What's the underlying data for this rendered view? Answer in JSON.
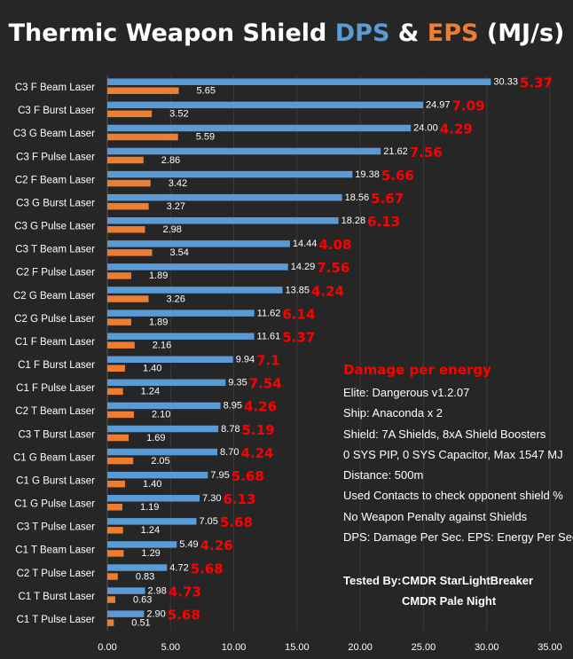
{
  "title": {
    "prefix": "Thermic Weapon Shield ",
    "dps": "DPS",
    "amp": " & ",
    "eps": "EPS",
    "suffix": " (MJ/s)"
  },
  "colors": {
    "background": "#262626",
    "dps": "#5b9bd5",
    "eps": "#ed7d31",
    "ratio": "#ff0000",
    "grid": "#3a3a3a"
  },
  "chart_data": {
    "type": "bar",
    "orientation": "horizontal",
    "categories": [
      "C3 F Beam Laser",
      "C3 F Burst Laser",
      "C3 G Beam Laser",
      "C3 F Pulse Laser",
      "C2 F Beam Laser",
      "C3 G Burst Laser",
      "C3 G Pulse Laser",
      "C3 T Beam Laser",
      "C2 F Pulse Laser",
      "C2 G Beam Laser",
      "C2 G Pulse Laser",
      "C1 F Beam Laser",
      "C1 F Burst Laser",
      "C1 F Pulse Laser",
      "C2 T Beam Laser",
      "C3 T Burst Laser",
      "C1 G Beam Laser",
      "C1 G Burst Laser",
      "C1 G Pulse Laser",
      "C3 T Pulse Laser",
      "C1 T Beam Laser",
      "C2 T Pulse Laser",
      "C1 T Burst Laser",
      "C1 T Pulse Laser"
    ],
    "series": [
      {
        "name": "DPS",
        "values": [
          30.33,
          24.97,
          24.0,
          21.62,
          19.38,
          18.56,
          18.28,
          14.44,
          14.29,
          13.85,
          11.62,
          11.61,
          9.94,
          9.35,
          8.95,
          8.78,
          8.7,
          7.95,
          7.3,
          7.05,
          5.49,
          4.72,
          2.98,
          2.9
        ],
        "labels": [
          "30.33",
          "24.97",
          "24.00",
          "21.62",
          "19.38",
          "18.56",
          "18.28",
          "14.44",
          "14.29",
          "13.85",
          "11.62",
          "11.61",
          "9.94",
          "9.35",
          "8.95",
          "8.78",
          "8.70",
          "7.95",
          "7.30",
          "7.05",
          "5.49",
          "4.72",
          "2.98",
          "2.90"
        ]
      },
      {
        "name": "EPS",
        "values": [
          5.65,
          3.52,
          5.59,
          2.86,
          3.42,
          3.27,
          2.98,
          3.54,
          1.89,
          3.26,
          1.89,
          2.16,
          1.4,
          1.24,
          2.1,
          1.69,
          2.05,
          1.4,
          1.19,
          1.24,
          1.29,
          0.83,
          0.63,
          0.51
        ],
        "labels": [
          "5.65",
          "3.52",
          "5.59",
          "2.86",
          "3.42",
          "3.27",
          "2.98",
          "3.54",
          "1.89",
          "3.26",
          "1.89",
          "2.16",
          "1.40",
          "1.24",
          "2.10",
          "1.69",
          "2.05",
          "1.40",
          "1.19",
          "1.24",
          "1.29",
          "0.83",
          "0.63",
          "0.51"
        ]
      }
    ],
    "damage_per_energy": [
      "5.37",
      "7.09",
      "4.29",
      "7.56",
      "5.66",
      "5.67",
      "6.13",
      "4.08",
      "7.56",
      "4.24",
      "6.14",
      "5.37",
      "7.1",
      "7.54",
      "4.26",
      "5.19",
      "4.24",
      "5.68",
      "6.13",
      "5.68",
      "4.26",
      "5.68",
      "4.73",
      "5.68"
    ],
    "xlim": [
      0,
      35
    ],
    "x_ticks": [
      "0.00",
      "5.00",
      "10.00",
      "15.00",
      "20.00",
      "25.00",
      "30.00",
      "35.00"
    ],
    "grid": true,
    "xlabel": "",
    "ylabel": ""
  },
  "notes": {
    "heading": "Damage per energy",
    "lines": [
      "Elite: Dangerous v1.2.07",
      "Ship: Anaconda x 2",
      "Shield: 7A Shields, 8xA Shield Boosters",
      "0 SYS PIP, 0 SYS Capacitor, Max 1547 MJ",
      "Distance: 500m",
      "Used Contacts to check opponent shield %",
      "No Weapon Penalty against Shields",
      "DPS: Damage Per Sec.  EPS: Energy Per Sec."
    ],
    "tested_label": "Tested By:",
    "testers": [
      "CMDR StarLightBreaker",
      "CMDR Pale Night"
    ]
  }
}
